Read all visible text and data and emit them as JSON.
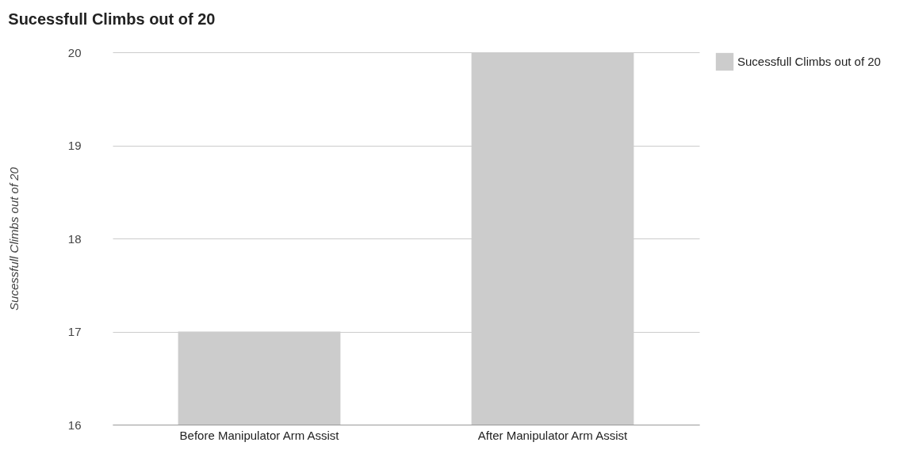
{
  "chart_data": {
    "type": "bar",
    "title": "Sucessfull Climbs out of 20",
    "ylabel": "Sucessfull Climbs out of 20",
    "categories": [
      "Before Manipulator Arm Assist",
      "After Manipulator Arm Assist"
    ],
    "series": [
      {
        "name": "Sucessfull Climbs out of 20",
        "color": "#cccccc",
        "values": [
          17,
          20
        ]
      }
    ],
    "ylim": [
      16,
      20
    ],
    "yticks": [
      16,
      17,
      18,
      19,
      20
    ],
    "grid": "y",
    "legend": "top right"
  }
}
